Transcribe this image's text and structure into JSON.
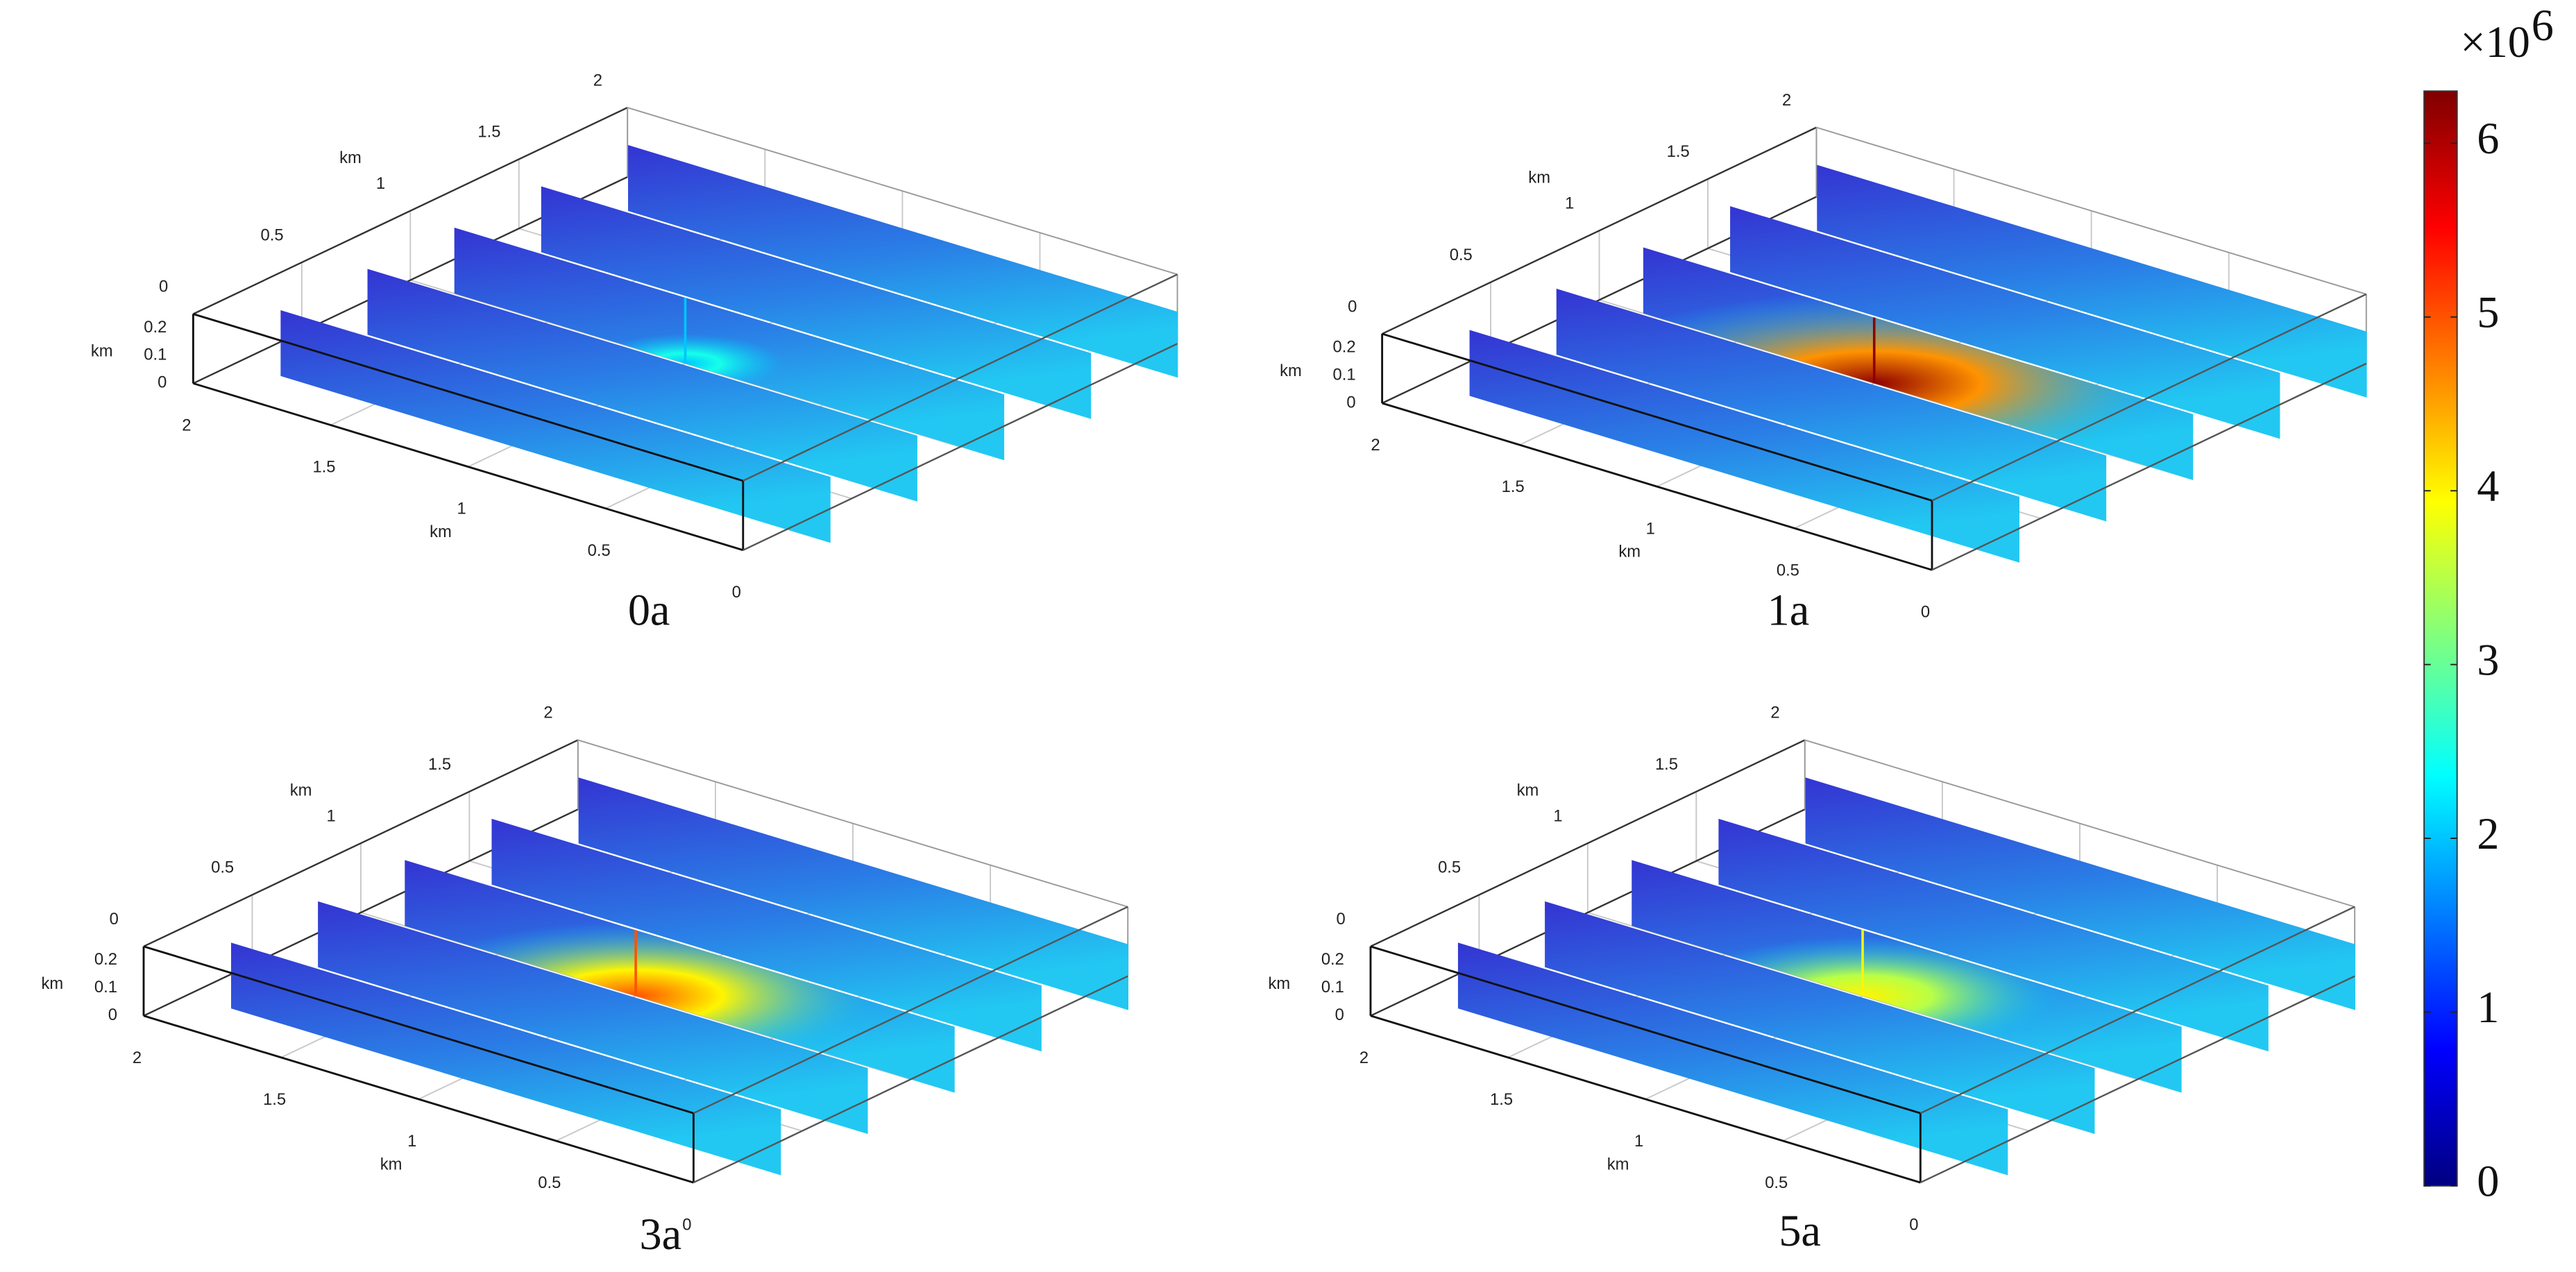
{
  "panels": [
    {
      "label": "0a",
      "peak": 2,
      "x_axis": {
        "title": "km",
        "ticks": [
          2,
          1.5,
          1,
          0.5,
          0
        ]
      },
      "y_axis": {
        "title": "km",
        "ticks": [
          0,
          0.5,
          1,
          1.5,
          2
        ]
      },
      "z_axis": {
        "title": "km",
        "ticks": [
          0,
          0.1,
          0.2
        ]
      }
    },
    {
      "label": "1a",
      "peak": 6.2,
      "x_axis": {
        "title": "km",
        "ticks": [
          2,
          1.5,
          1,
          0.5,
          0
        ]
      },
      "y_axis": {
        "title": "km",
        "ticks": [
          0,
          0.5,
          1,
          1.5,
          2
        ]
      },
      "z_axis": {
        "title": "km",
        "ticks": [
          0,
          0.1,
          0.2
        ]
      }
    },
    {
      "label": "3a",
      "peak": 5,
      "x_axis": {
        "title": "km",
        "ticks": [
          2,
          1.5,
          1,
          0.5,
          0
        ]
      },
      "y_axis": {
        "title": "km",
        "ticks": [
          0,
          0.5,
          1,
          1.5,
          2
        ]
      },
      "z_axis": {
        "title": "km",
        "ticks": [
          0,
          0.1,
          0.2
        ]
      }
    },
    {
      "label": "5a",
      "peak": 4,
      "x_axis": {
        "title": "km",
        "ticks": [
          2,
          1.5,
          1,
          0.5,
          0
        ]
      },
      "y_axis": {
        "title": "km",
        "ticks": [
          0,
          0.5,
          1,
          1.5,
          2
        ]
      },
      "z_axis": {
        "title": "km",
        "ticks": [
          0,
          0.1,
          0.2
        ]
      }
    }
  ],
  "colorbar": {
    "multiplier": "×10",
    "exponent": "6",
    "lim": [
      0,
      6.3
    ],
    "ticks": [
      0,
      1,
      2,
      3,
      4,
      5,
      6
    ],
    "colors": [
      "#00007f",
      "#0000ff",
      "#007fff",
      "#00ffff",
      "#7fff7f",
      "#ffff00",
      "#ff7f00",
      "#ff0000",
      "#7f0000"
    ]
  }
}
